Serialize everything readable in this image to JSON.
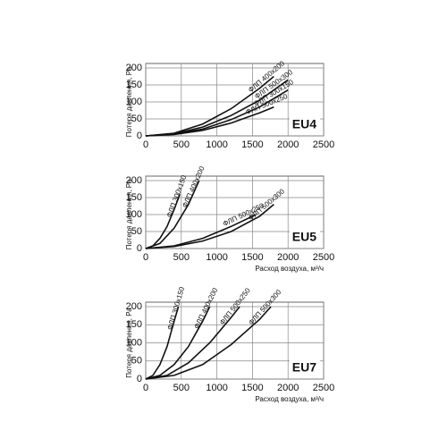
{
  "chart_data": [
    {
      "type": "line",
      "label": "EU4",
      "ylabel": "Потеря давления, Ра",
      "xlim": [
        0,
        2500
      ],
      "xticks": [
        0,
        500,
        1000,
        1500,
        2000,
        2500
      ],
      "ylim": [
        0,
        200
      ],
      "yticks": [
        0,
        50,
        100,
        150,
        200
      ],
      "grid": true,
      "series": [
        {
          "name": "ФЛП 400x200",
          "color": "#111111",
          "x": [
            0,
            400,
            800,
            1200,
            1600,
            1800
          ],
          "values": [
            0,
            8,
            35,
            80,
            140,
            175
          ]
        },
        {
          "name": "ФЛП 500x300",
          "color": "#111111",
          "x": [
            0,
            400,
            800,
            1200,
            1600,
            2000
          ],
          "values": [
            0,
            6,
            26,
            60,
            105,
            165
          ]
        },
        {
          "name": "ФЛП 300x150",
          "color": "#111111",
          "x": [
            0,
            400,
            800,
            1200,
            1600,
            2000
          ],
          "values": [
            0,
            5,
            20,
            48,
            85,
            135
          ]
        },
        {
          "name": "ФЛП 500x250",
          "color": "#111111",
          "x": [
            0,
            400,
            800,
            1200,
            1600,
            1800
          ],
          "values": [
            0,
            4,
            16,
            38,
            68,
            85
          ]
        }
      ]
    },
    {
      "type": "line",
      "label": "EU5",
      "ylabel": "Потеря давления, Ра",
      "xlabel": "Расход воздуха, м³/ч",
      "xlim": [
        0,
        2500
      ],
      "xticks": [
        0,
        500,
        1000,
        1500,
        2000,
        2500
      ],
      "ylim": [
        0,
        200
      ],
      "yticks": [
        0,
        50,
        100,
        150,
        200
      ],
      "grid": true,
      "series": [
        {
          "name": "ФЛП 300x150",
          "color": "#111111",
          "x": [
            0,
            100,
            200,
            300,
            400,
            480
          ],
          "values": [
            0,
            8,
            30,
            65,
            115,
            160
          ]
        },
        {
          "name": "ФЛП 400x200",
          "color": "#111111",
          "x": [
            0,
            200,
            400,
            600,
            750
          ],
          "values": [
            0,
            15,
            60,
            130,
            200
          ]
        },
        {
          "name": "ФЛП 500x250",
          "color": "#111111",
          "x": [
            0,
            400,
            800,
            1200,
            1550
          ],
          "values": [
            0,
            8,
            30,
            65,
            100
          ]
        },
        {
          "name": "ФЛП 500x300",
          "color": "#111111",
          "x": [
            0,
            400,
            800,
            1200,
            1600,
            1800
          ],
          "values": [
            0,
            6,
            22,
            50,
            95,
            130
          ]
        }
      ]
    },
    {
      "type": "line",
      "label": "EU7",
      "ylabel": "Потеря давления, Ра",
      "xlabel": "Расход воздуха, м³/ч",
      "xlim": [
        0,
        2500
      ],
      "xticks": [
        0,
        500,
        1000,
        1500,
        2000,
        2500
      ],
      "ylim": [
        0,
        200
      ],
      "yticks": [
        0,
        50,
        100,
        150,
        200
      ],
      "grid": true,
      "series": [
        {
          "name": "ФЛП 300x150",
          "color": "#111111",
          "x": [
            0,
            100,
            200,
            300,
            400,
            460
          ],
          "values": [
            0,
            10,
            40,
            90,
            160,
            200
          ]
        },
        {
          "name": "ФЛП 400x200",
          "color": "#111111",
          "x": [
            0,
            200,
            400,
            600,
            800,
            900
          ],
          "values": [
            0,
            10,
            40,
            90,
            160,
            200
          ]
        },
        {
          "name": "ФЛП 500x250",
          "color": "#111111",
          "x": [
            0,
            300,
            600,
            900,
            1200,
            1320
          ],
          "values": [
            0,
            10,
            45,
            100,
            170,
            200
          ]
        },
        {
          "name": "ФЛП 500x300",
          "color": "#111111",
          "x": [
            0,
            400,
            800,
            1200,
            1600,
            1760
          ],
          "values": [
            0,
            10,
            40,
            95,
            165,
            200
          ]
        }
      ]
    }
  ]
}
